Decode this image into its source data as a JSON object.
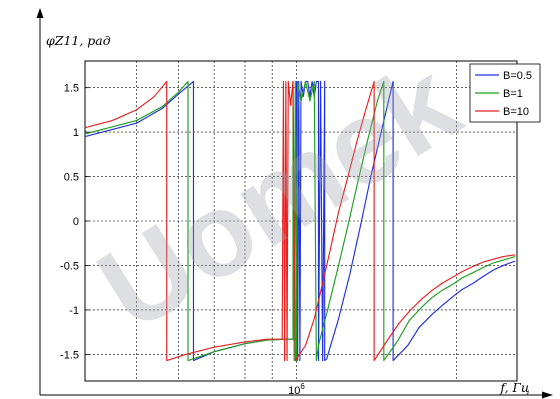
{
  "chart_data": {
    "type": "line",
    "title": "",
    "ylabel": "φZ11, рад",
    "xlabel": "f, Гц",
    "x_scale": "log",
    "grid": true,
    "xlim": [
      400000,
      2600000
    ],
    "ylim": [
      -1.8,
      1.8
    ],
    "y_ticks": [
      -1.5,
      -1,
      -0.5,
      0,
      0.5,
      1,
      1.5
    ],
    "y_tick_labels": [
      "-1.5",
      "-1",
      "-0.5",
      "0",
      "0.5",
      "1",
      "1.5"
    ],
    "x_tick_labels": [
      {
        "value": 1000000,
        "base": "10",
        "exp": "6"
      }
    ],
    "legend": {
      "position": "top-right",
      "entries": [
        "B=0.5",
        "B=1",
        "B=10"
      ]
    },
    "series": [
      {
        "name": "B=0.5",
        "color": "#2030e0",
        "points": [
          [
            400000,
            0.95
          ],
          [
            500000,
            1.1
          ],
          [
            560000,
            1.27
          ],
          [
            600000,
            1.43
          ],
          [
            640000,
            1.57
          ],
          [
            640000,
            -1.57
          ],
          [
            700000,
            -1.47
          ],
          [
            800000,
            -1.38
          ],
          [
            880000,
            -1.34
          ],
          [
            960000,
            -1.33
          ],
          [
            1000000,
            -1.33
          ],
          [
            1000000,
            1.57
          ],
          [
            1005000,
            -1.57
          ],
          [
            1010000,
            1.57
          ],
          [
            1015000,
            -1.57
          ],
          [
            1020000,
            1.57
          ],
          [
            1030000,
            1.4
          ],
          [
            1040000,
            1.57
          ],
          [
            1050000,
            1.57
          ],
          [
            1060000,
            1.4
          ],
          [
            1070000,
            1.57
          ],
          [
            1080000,
            1.4
          ],
          [
            1090000,
            1.57
          ],
          [
            1100000,
            1.57
          ],
          [
            1100000,
            -1.57
          ],
          [
            1110000,
            1.57
          ],
          [
            1120000,
            -1.57
          ],
          [
            1130000,
            1.57
          ],
          [
            1130000,
            -1.57
          ],
          [
            1140000,
            -1.55
          ],
          [
            1200000,
            -1.1
          ],
          [
            1260000,
            -0.6
          ],
          [
            1320000,
            -0.05
          ],
          [
            1380000,
            0.5
          ],
          [
            1450000,
            1.05
          ],
          [
            1520000,
            1.57
          ],
          [
            1520000,
            -1.57
          ],
          [
            1620000,
            -1.4
          ],
          [
            1700000,
            -1.2
          ],
          [
            1800000,
            -1.05
          ],
          [
            1880000,
            -0.95
          ],
          [
            1970000,
            -0.85
          ],
          [
            2050000,
            -0.77
          ],
          [
            2150000,
            -0.7
          ],
          [
            2250000,
            -0.62
          ],
          [
            2350000,
            -0.55
          ],
          [
            2450000,
            -0.5
          ],
          [
            2580000,
            -0.45
          ]
        ]
      },
      {
        "name": "B=1",
        "color": "#20a020",
        "points": [
          [
            400000,
            0.98
          ],
          [
            500000,
            1.13
          ],
          [
            560000,
            1.29
          ],
          [
            600000,
            1.45
          ],
          [
            625000,
            1.57
          ],
          [
            625000,
            -1.57
          ],
          [
            700000,
            -1.47
          ],
          [
            800000,
            -1.38
          ],
          [
            880000,
            -1.34
          ],
          [
            960000,
            -1.33
          ],
          [
            985000,
            -1.33
          ],
          [
            985000,
            1.57
          ],
          [
            990000,
            -1.57
          ],
          [
            995000,
            1.57
          ],
          [
            1000000,
            -1.57
          ],
          [
            1005000,
            1.57
          ],
          [
            1020000,
            1.35
          ],
          [
            1040000,
            1.57
          ],
          [
            1060000,
            1.35
          ],
          [
            1080000,
            1.57
          ],
          [
            1090000,
            -1.57
          ],
          [
            1100000,
            -1.4
          ],
          [
            1150000,
            -0.95
          ],
          [
            1200000,
            -0.5
          ],
          [
            1250000,
            -0.05
          ],
          [
            1300000,
            0.4
          ],
          [
            1360000,
            0.9
          ],
          [
            1420000,
            1.35
          ],
          [
            1460000,
            1.57
          ],
          [
            1460000,
            -1.57
          ],
          [
            1550000,
            -1.35
          ],
          [
            1630000,
            -1.12
          ],
          [
            1720000,
            -0.97
          ],
          [
            1800000,
            -0.86
          ],
          [
            1880000,
            -0.78
          ],
          [
            1970000,
            -0.71
          ],
          [
            2050000,
            -0.64
          ],
          [
            2150000,
            -0.58
          ],
          [
            2250000,
            -0.52
          ],
          [
            2350000,
            -0.47
          ],
          [
            2450000,
            -0.44
          ],
          [
            2580000,
            -0.4
          ]
        ]
      },
      {
        "name": "B=10",
        "color": "#e82020",
        "points": [
          [
            400000,
            1.05
          ],
          [
            450000,
            1.13
          ],
          [
            500000,
            1.25
          ],
          [
            540000,
            1.4
          ],
          [
            570000,
            1.57
          ],
          [
            570000,
            -1.57
          ],
          [
            620000,
            -1.5
          ],
          [
            700000,
            -1.42
          ],
          [
            800000,
            -1.36
          ],
          [
            880000,
            -1.33
          ],
          [
            940000,
            -1.33
          ],
          [
            945000,
            1.57
          ],
          [
            950000,
            -1.57
          ],
          [
            955000,
            1.57
          ],
          [
            960000,
            -1.57
          ],
          [
            965000,
            1.57
          ],
          [
            975000,
            1.3
          ],
          [
            985000,
            1.57
          ],
          [
            995000,
            -1.57
          ],
          [
            1040000,
            -1.4
          ],
          [
            1080000,
            -1.1
          ],
          [
            1120000,
            -0.7
          ],
          [
            1160000,
            -0.3
          ],
          [
            1200000,
            0.1
          ],
          [
            1250000,
            0.5
          ],
          [
            1300000,
            0.9
          ],
          [
            1350000,
            1.25
          ],
          [
            1400000,
            1.57
          ],
          [
            1400000,
            -1.57
          ],
          [
            1480000,
            -1.35
          ],
          [
            1560000,
            -1.15
          ],
          [
            1640000,
            -1.0
          ],
          [
            1720000,
            -0.88
          ],
          [
            1800000,
            -0.78
          ],
          [
            1880000,
            -0.7
          ],
          [
            1970000,
            -0.63
          ],
          [
            2050000,
            -0.57
          ],
          [
            2150000,
            -0.51
          ],
          [
            2250000,
            -0.46
          ],
          [
            2350000,
            -0.43
          ],
          [
            2450000,
            -0.4
          ],
          [
            2580000,
            -0.38
          ]
        ]
      }
    ]
  }
}
